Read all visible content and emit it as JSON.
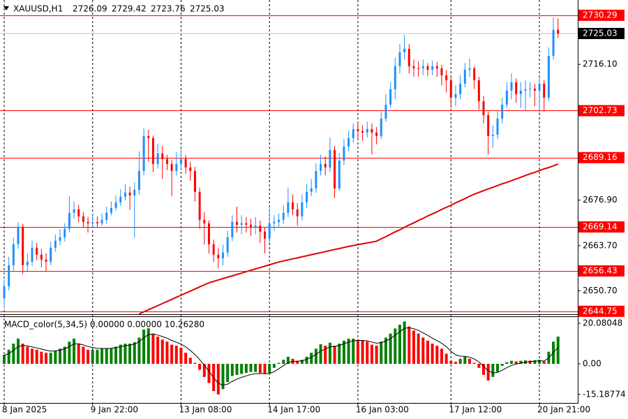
{
  "chart_data": [
    {
      "type": "candlestick",
      "title": "XAUUSD,H1",
      "categories": [
        "8 Jan 2025",
        null,
        null,
        null,
        null,
        null,
        null,
        null,
        null,
        null,
        null,
        null,
        null,
        null,
        null,
        null,
        null,
        null,
        null,
        "9 Jan 22:00",
        null,
        null,
        null,
        null,
        null,
        null,
        null,
        null,
        null,
        null,
        null,
        null,
        null,
        null,
        null,
        null,
        null,
        null,
        "13 Jan 08:00",
        null,
        null,
        null,
        null,
        null,
        null,
        null,
        null,
        null,
        null,
        null,
        null,
        null,
        null,
        null,
        null,
        null,
        null,
        "14 Jan 17:00",
        null,
        null,
        null,
        null,
        null,
        null,
        null,
        null,
        null,
        null,
        null,
        null,
        null,
        null,
        null,
        null,
        null,
        null,
        "16 Jan 03:00",
        null,
        null,
        null,
        null,
        null,
        null,
        null,
        null,
        null,
        null,
        null,
        null,
        null,
        null,
        null,
        null,
        null,
        null,
        null,
        "17 Jan 12:00",
        null,
        null,
        null,
        null,
        null,
        null,
        null,
        null,
        null,
        null,
        null,
        null,
        null,
        null,
        null,
        null,
        null,
        null,
        "20 Jan 21:00",
        null,
        null,
        null,
        null
      ],
      "open": [
        2648.5,
        2652.03,
        2658.08,
        2664.13,
        2669.17,
        2658.08,
        2659.09,
        2663.12,
        2661.11,
        2659.69,
        2659.09,
        2663.12,
        2665.14,
        2666.15,
        2668.57,
        2673.21,
        2674.22,
        2672.2,
        2670.59,
        2670.18,
        2670.5,
        2670.18,
        2671.19,
        2673.21,
        2674.62,
        2676.23,
        2677.85,
        2679.06,
        2678.25,
        2679.86,
        2685.31,
        2695.4,
        2694.8,
        2687.33,
        2690.35,
        2688.74,
        2687.33,
        2685.31,
        2687.33,
        2688.74,
        2686.32,
        2685.31,
        2679.26,
        2671.19,
        2670.18,
        2664.13,
        2661.11,
        2660.1,
        2661.71,
        2666.15,
        2670.59,
        2669.78,
        2670.18,
        2669.78,
        2669.17,
        2669.5,
        2667.76,
        2665.75,
        2670.18,
        2670.59,
        2671.19,
        2673.21,
        2676.23,
        2674.22,
        2672.2,
        2676.23,
        2679.26,
        2680.27,
        2685.31,
        2687.33,
        2686.32,
        2691.36,
        2680.27,
        2688.34,
        2692.37,
        2694.79,
        2697.41,
        2696.81,
        2696.4,
        2697.41,
        2696.4,
        2695.4,
        2700.44,
        2704.47,
        2708.91,
        2715.57,
        2719.6,
        2720.61,
        2715.57,
        2715.0,
        2714.96,
        2715.57,
        2714.56,
        2715.57,
        2714.96,
        2712.94,
        2711.53,
        2706.49,
        2707.5,
        2710.52,
        2714.56,
        2714.96,
        2711.53,
        2705.48,
        2701.45,
        2695.4,
        2695.8,
        2700.44,
        2704.47,
        2708.51,
        2710.93,
        2707.5,
        2708.51,
        2708.91,
        2709.11,
        2708.51,
        2710.52,
        2706.49,
        2718.59,
        2726.09
      ],
      "high": [
        2654.0,
        2660.5,
        2666.0,
        2670.5,
        2670.0,
        2661.5,
        2665.2,
        2664.5,
        2662.8,
        2661.5,
        2664.8,
        2667.0,
        2668.5,
        2670.2,
        2678.0,
        2676.5,
        2675.5,
        2673.5,
        2672.0,
        2672.8,
        2672.2,
        2673.0,
        2675.0,
        2676.5,
        2678.2,
        2680.0,
        2681.5,
        2680.8,
        2682.0,
        2691.0,
        2697.6,
        2697.2,
        2695.5,
        2693.2,
        2692.5,
        2690.0,
        2688.5,
        2690.8,
        2691.5,
        2690.0,
        2688.0,
        2686.5,
        2680.5,
        2673.5,
        2671.0,
        2665.5,
        2663.0,
        2664.0,
        2668.0,
        2672.5,
        2675.0,
        2672.5,
        2672.0,
        2671.5,
        2672.0,
        2671.0,
        2669.0,
        2674.5,
        2672.5,
        2673.0,
        2675.5,
        2680.5,
        2678.5,
        2676.0,
        2678.5,
        2681.5,
        2683.0,
        2687.5,
        2690.0,
        2689.5,
        2695.0,
        2692.5,
        2690.5,
        2694.5,
        2697.0,
        2699.0,
        2699.5,
        2698.5,
        2699.5,
        2699.0,
        2698.0,
        2702.5,
        2707.5,
        2711.0,
        2718.0,
        2722.0,
        2724.6,
        2722.0,
        2717.5,
        2717.0,
        2717.5,
        2716.5,
        2717.2,
        2716.8,
        2716.0,
        2714.5,
        2713.0,
        2710.0,
        2713.0,
        2716.5,
        2717.8,
        2715.5,
        2712.5,
        2707.0,
        2702.5,
        2698.5,
        2702.5,
        2706.5,
        2711.0,
        2713.5,
        2712.0,
        2711.0,
        2711.5,
        2711.0,
        2710.5,
        2712.5,
        2711.5,
        2721.0,
        2729.7,
        2729.42
      ],
      "low": [
        2645.5,
        2650.8,
        2656.5,
        2662.8,
        2655.5,
        2656.0,
        2657.8,
        2659.5,
        2657.5,
        2656.2,
        2658.0,
        2662.0,
        2663.8,
        2665.0,
        2667.5,
        2671.5,
        2670.5,
        2669.0,
        2667.5,
        2668.8,
        2668.9,
        2669.5,
        2670.0,
        2672.5,
        2673.8,
        2675.2,
        2676.8,
        2674.0,
        2666.0,
        2678.5,
        2684.0,
        2688.0,
        2685.0,
        2686.0,
        2683.0,
        2685.5,
        2678.0,
        2684.0,
        2686.0,
        2684.5,
        2682.5,
        2676.5,
        2668.5,
        2664.0,
        2661.5,
        2659.0,
        2657.2,
        2658.0,
        2660.5,
        2665.0,
        2667.5,
        2667.0,
        2667.5,
        2666.5,
        2667.0,
        2664.5,
        2661.5,
        2664.5,
        2668.0,
        2669.0,
        2670.0,
        2672.0,
        2672.5,
        2669.5,
        2671.0,
        2674.5,
        2678.0,
        2679.0,
        2684.0,
        2684.0,
        2685.0,
        2677.5,
        2679.5,
        2687.0,
        2691.0,
        2693.5,
        2694.5,
        2694.0,
        2695.0,
        2690.0,
        2693.0,
        2694.5,
        2699.5,
        2703.5,
        2706.0,
        2713.5,
        2717.5,
        2713.5,
        2712.5,
        2712.5,
        2713.0,
        2712.8,
        2713.0,
        2712.5,
        2710.0,
        2708.0,
        2703.5,
        2704.0,
        2706.0,
        2709.5,
        2712.5,
        2709.0,
        2703.0,
        2699.0,
        2690.0,
        2692.0,
        2694.5,
        2699.0,
        2703.5,
        2706.0,
        2705.0,
        2703.5,
        2702.5,
        2706.5,
        2704.0,
        2702.0,
        2702.5,
        2705.5,
        2717.5,
        2723.76
      ],
      "close": [
        2652.03,
        2658.08,
        2664.13,
        2669.17,
        2658.08,
        2659.09,
        2663.12,
        2661.11,
        2659.69,
        2659.09,
        2663.12,
        2665.14,
        2666.15,
        2668.57,
        2673.21,
        2674.22,
        2672.2,
        2670.59,
        2670.18,
        2670.5,
        2670.18,
        2671.19,
        2673.21,
        2674.62,
        2676.23,
        2677.85,
        2679.06,
        2678.25,
        2679.86,
        2685.31,
        2695.4,
        2694.8,
        2687.33,
        2690.35,
        2688.74,
        2687.33,
        2685.31,
        2687.33,
        2688.74,
        2686.32,
        2685.31,
        2679.26,
        2671.19,
        2670.18,
        2664.13,
        2661.11,
        2660.1,
        2661.71,
        2666.15,
        2670.59,
        2669.78,
        2670.18,
        2669.78,
        2669.17,
        2669.5,
        2667.76,
        2665.75,
        2670.18,
        2670.59,
        2671.19,
        2673.21,
        2676.23,
        2674.22,
        2672.2,
        2676.23,
        2679.26,
        2680.27,
        2685.31,
        2687.33,
        2686.32,
        2691.36,
        2680.27,
        2688.34,
        2692.37,
        2694.79,
        2697.41,
        2696.81,
        2696.4,
        2697.41,
        2696.4,
        2695.4,
        2700.44,
        2704.47,
        2708.91,
        2715.57,
        2719.6,
        2720.61,
        2715.57,
        2715.0,
        2714.96,
        2715.57,
        2714.56,
        2715.57,
        2714.96,
        2712.94,
        2711.53,
        2706.49,
        2707.5,
        2710.52,
        2714.56,
        2714.96,
        2711.53,
        2705.48,
        2701.45,
        2695.4,
        2695.8,
        2700.44,
        2704.47,
        2708.51,
        2710.93,
        2707.5,
        2708.51,
        2708.91,
        2709.11,
        2708.51,
        2710.52,
        2706.49,
        2718.59,
        2726.09,
        2725.03
      ],
      "up_color": "#1e90ff",
      "down_color": "#ff0000",
      "moving_average": {
        "color": "#e00000",
        "values": [
          null,
          null,
          null,
          null,
          null,
          null,
          null,
          null,
          null,
          null,
          null,
          null,
          null,
          null,
          null,
          null,
          null,
          null,
          null,
          null,
          null,
          null,
          null,
          null,
          null,
          null,
          null,
          null,
          null,
          2644.0,
          2644.6,
          2645.2,
          2645.8,
          2646.4,
          2647.0,
          2647.6,
          2648.2,
          2648.8,
          2649.4,
          2650.0,
          2650.6,
          2651.2,
          2651.8,
          2652.4,
          2653.0,
          2653.4,
          2653.8,
          2654.2,
          2654.6,
          2655.0,
          2655.4,
          2655.8,
          2656.2,
          2656.6,
          2657.0,
          2657.4,
          2657.8,
          2658.2,
          2658.6,
          2659.0,
          2659.3,
          2659.6,
          2659.9,
          2660.2,
          2660.5,
          2660.8,
          2661.1,
          2661.4,
          2661.7,
          2662.0,
          2662.3,
          2662.6,
          2662.9,
          2663.2,
          2663.5,
          2663.75,
          2664.0,
          2664.25,
          2664.5,
          2664.75,
          2665.0,
          2665.7,
          2666.3,
          2667.0,
          2667.7,
          2668.3,
          2669.0,
          2669.7,
          2670.3,
          2671.0,
          2671.6,
          2672.3,
          2672.9,
          2673.5,
          2674.2,
          2674.8,
          2675.4,
          2676.1,
          2676.7,
          2677.3,
          2678.0,
          2678.6,
          2679.1,
          2679.6,
          2680.1,
          2680.6,
          2681.1,
          2681.6,
          2682.0,
          2682.5,
          2683.0,
          2683.5,
          2684.0,
          2684.5,
          2684.9,
          2685.4,
          2685.9,
          2686.3,
          2686.8,
          2687.3
        ]
      },
      "levels": [
        2730.29,
        2702.73,
        2689.16,
        2669.14,
        2656.43,
        2644.75
      ],
      "level_color": "#ff0000",
      "ylim": [
        2643.9,
        2733.7
      ],
      "yticks": [
        {
          "value": 2716.1,
          "label": "2716.10"
        },
        {
          "value": 2676.9,
          "label": "2676.90"
        },
        {
          "value": 2663.7,
          "label": "2663.70"
        },
        {
          "value": 2650.7,
          "label": "2650.70"
        }
      ],
      "grid": true
    },
    {
      "type": "macd",
      "label": "MACD_color(5,34,5) 0.00000 0.00000 10.26280",
      "values": [
        4.5,
        7,
        10,
        12.5,
        10,
        8.5,
        7.5,
        7,
        6,
        5.5,
        5.5,
        6.5,
        7.5,
        8.5,
        11,
        12.5,
        10,
        8.5,
        7,
        7,
        7,
        7.5,
        7.5,
        7.8,
        8.5,
        9.5,
        10,
        10,
        10.7,
        13,
        17,
        17.6,
        15,
        13.5,
        12,
        11,
        9.5,
        9,
        8,
        5.5,
        3,
        0.5,
        -3,
        -6.5,
        -9.5,
        -13.5,
        -15.2,
        -12.5,
        -9,
        -6,
        -5.5,
        -5,
        -4.5,
        -4,
        -4,
        -4.5,
        -5,
        -4.5,
        -2,
        0.5,
        2,
        3.5,
        2.5,
        1.5,
        2,
        3.5,
        5.5,
        7.5,
        9.7,
        9,
        10.5,
        9,
        10,
        11.5,
        12.5,
        12.5,
        12,
        11.5,
        11,
        9.5,
        9,
        11,
        13,
        15,
        17.5,
        19.4,
        21,
        18.5,
        16.5,
        15,
        13,
        11.5,
        10,
        9,
        7.5,
        5,
        1.5,
        1,
        2.5,
        3.5,
        2.5,
        0.5,
        -2,
        -5.5,
        -8.3,
        -6.5,
        -4,
        -1,
        0.8,
        1.5,
        1.2,
        1.5,
        1.7,
        1.6,
        1.8,
        2,
        1.2,
        6,
        11,
        13.5
      ],
      "signal": [
        4.2,
        5.1,
        6.7,
        8.6,
        9.1,
        8.9,
        8.4,
        7.9,
        7.3,
        6.7,
        6.3,
        6.4,
        6.8,
        7.4,
        8.6,
        9.9,
        9.9,
        9.4,
        8.6,
        8.1,
        7.7,
        7.6,
        7.6,
        7.7,
        8.0,
        8.5,
        9.0,
        9.3,
        9.8,
        10.9,
        12.9,
        14.5,
        14.7,
        14.3,
        13.5,
        12.7,
        11.6,
        10.7,
        9.8,
        8.4,
        6.6,
        4.6,
        2.1,
        -0.7,
        -3.6,
        -6.9,
        -9.6,
        -10.6,
        -10.1,
        -8.7,
        -7.6,
        -6.7,
        -6.0,
        -5.3,
        -4.9,
        -4.8,
        -4.9,
        -4.8,
        -3.9,
        -2.4,
        -0.9,
        0.6,
        1.2,
        1.3,
        1.5,
        2.2,
        3.3,
        4.7,
        6.4,
        7.3,
        8.4,
        8.6,
        9.1,
        9.9,
        10.8,
        11.4,
        11.6,
        11.6,
        11.4,
        10.8,
        10.2,
        10.5,
        11.3,
        12.5,
        14.2,
        15.9,
        17.6,
        17.9,
        17.4,
        16.6,
        15.4,
        14.1,
        12.7,
        11.5,
        10.2,
        8.5,
        6.2,
        4.5,
        3.8,
        3.7,
        3.3,
        2.4,
        0.9,
        -1.2,
        -3.5,
        -4.5,
        -4.3,
        -3.2,
        -1.9,
        -0.8,
        -0.1,
        0.4,
        0.8,
        1.1,
        1.3,
        1.5,
        1.4,
        2.9,
        5.6,
        8.2
      ],
      "up_color": "#008000",
      "down_color": "#ff0000",
      "signal_color": "#000000",
      "ylim": [
        -18.7,
        22.85
      ],
      "yticks": [
        20.08048,
        {
          "value": 0,
          "label": "0.00"
        },
        -15.18774
      ]
    }
  ]
}
